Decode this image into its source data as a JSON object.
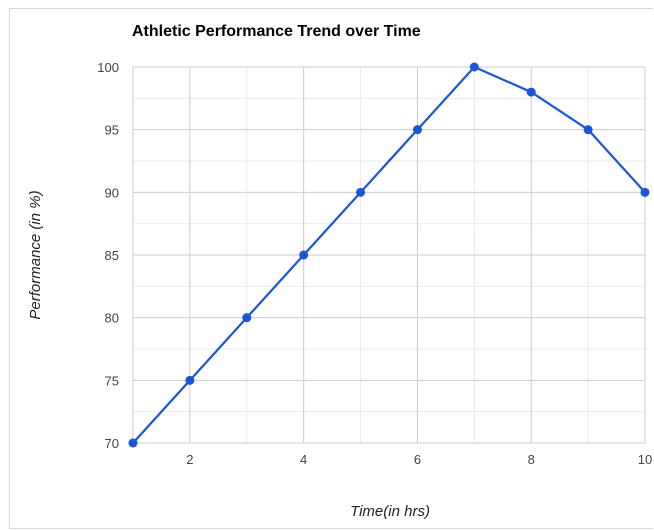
{
  "chart_data": {
    "type": "line",
    "title": "Athletic Performance Trend over Time",
    "xlabel": "Time(in hrs)",
    "ylabel": "Performance (in %)",
    "x": [
      1,
      2,
      3,
      4,
      5,
      6,
      7,
      8,
      9,
      10
    ],
    "series": [
      {
        "values": [
          70,
          75,
          80,
          85,
          90,
          95,
          100,
          98,
          95,
          90
        ]
      }
    ],
    "xlim": [
      1,
      10
    ],
    "ylim": [
      70,
      100
    ],
    "xticks": [
      2,
      4,
      6,
      8,
      10
    ],
    "yticks": [
      70,
      75,
      80,
      85,
      90,
      95,
      100
    ],
    "grid": true,
    "legend": "none",
    "colors": {
      "line": "#1a56d6",
      "grid_major": "#cccccc",
      "grid_minor": "#ebebeb",
      "axis_text": "#444444",
      "title": "#000000"
    }
  }
}
